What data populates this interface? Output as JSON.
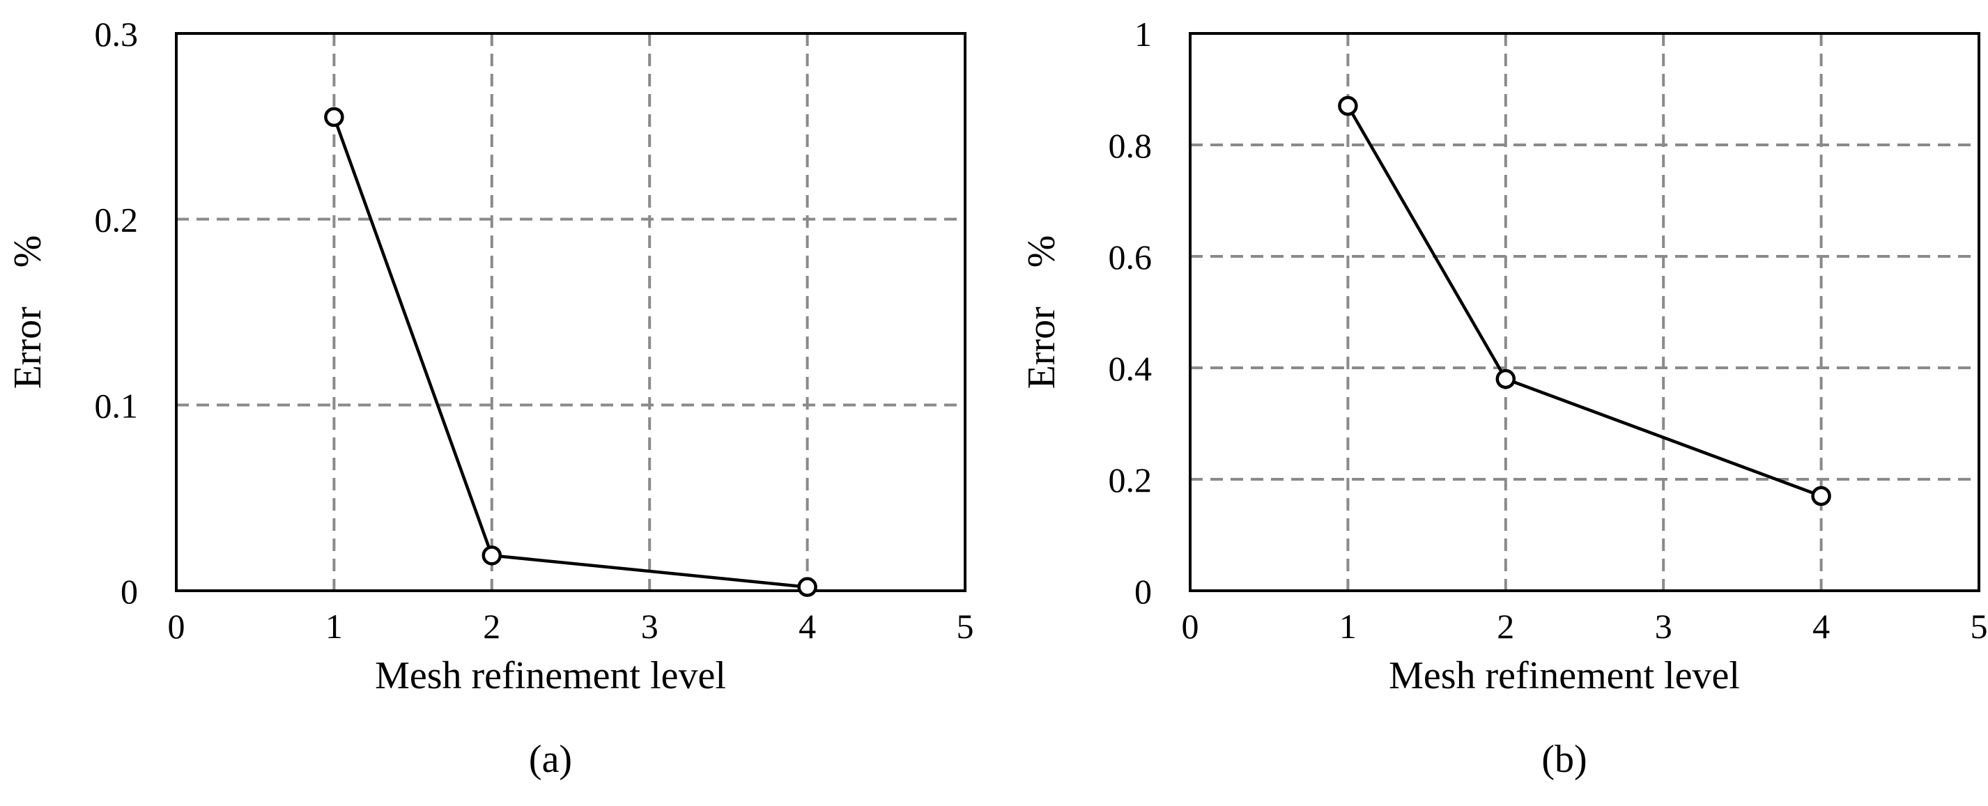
{
  "chart_data": [
    {
      "type": "line",
      "panel_label": "(a)",
      "xlabel": "Mesh refinement level",
      "ylabel": "Error　%",
      "xlim": [
        0,
        5
      ],
      "ylim": [
        0,
        0.3
      ],
      "x_ticks": [
        0,
        1,
        2,
        3,
        4,
        5
      ],
      "x_tick_labels": [
        "0",
        "1",
        "2",
        "3",
        "4",
        "5"
      ],
      "y_ticks": [
        0,
        0.1,
        0.2,
        0.3
      ],
      "y_tick_labels": [
        "0",
        "0.1",
        "0.2",
        "0.3"
      ],
      "grid": true,
      "marker": "open-circle",
      "line_color": "#000000",
      "grid_color": "#8a8a8a",
      "x": [
        1,
        2,
        4
      ],
      "y": [
        0.255,
        0.019,
        0.002
      ]
    },
    {
      "type": "line",
      "panel_label": "(b)",
      "xlabel": "Mesh refinement level",
      "ylabel": "Error　%",
      "xlim": [
        0,
        5
      ],
      "ylim": [
        0,
        1
      ],
      "x_ticks": [
        0,
        1,
        2,
        3,
        4,
        5
      ],
      "x_tick_labels": [
        "0",
        "1",
        "2",
        "3",
        "4",
        "5"
      ],
      "y_ticks": [
        0,
        0.2,
        0.4,
        0.6,
        0.8,
        1
      ],
      "y_tick_labels": [
        "0",
        "0.2",
        "0.4",
        "0.6",
        "0.8",
        "1"
      ],
      "grid": true,
      "marker": "open-circle",
      "line_color": "#000000",
      "grid_color": "#8a8a8a",
      "x": [
        1,
        2,
        4
      ],
      "y": [
        0.87,
        0.38,
        0.17
      ]
    }
  ]
}
